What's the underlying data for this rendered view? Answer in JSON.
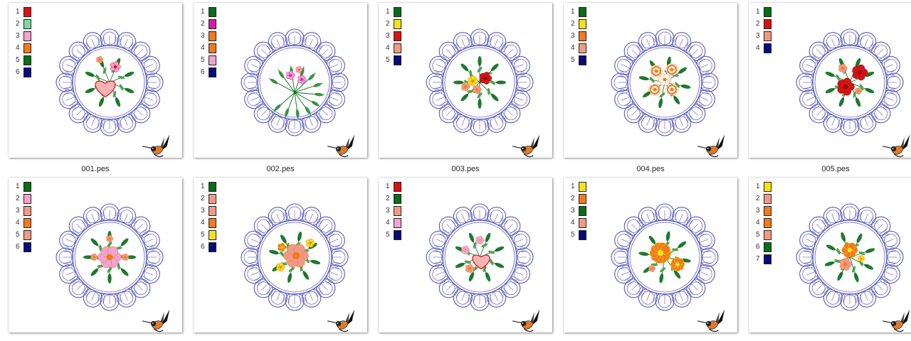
{
  "colors": {
    "green": "#0a6b1a",
    "light_green": "#7fd6a0",
    "pink": "#f2a3cf",
    "orange": "#f07a1e",
    "navy": "#0a0a7a",
    "magenta": "#d21ca8",
    "yellow": "#f4e21a",
    "red": "#d41414",
    "salmon": "#ef9a86",
    "blue_stitch": "#5a5ab8"
  },
  "files": [
    {
      "name": "001.pes",
      "threads": [
        {
          "num": "1",
          "color": "#d41414"
        },
        {
          "num": "2",
          "color": "#7fd6a0"
        },
        {
          "num": "3",
          "color": "#f2a3cf"
        },
        {
          "num": "4",
          "color": "#f07a1e"
        },
        {
          "num": "5",
          "color": "#0a6b1a"
        },
        {
          "num": "6",
          "color": "#0a0a7a"
        }
      ]
    },
    {
      "name": "002.pes",
      "threads": [
        {
          "num": "1",
          "color": "#0a6b1a"
        },
        {
          "num": "2",
          "color": "#d21ca8"
        },
        {
          "num": "3",
          "color": "#f07a1e"
        },
        {
          "num": "4",
          "color": "#f07a1e"
        },
        {
          "num": "5",
          "color": "#f2a3cf"
        },
        {
          "num": "6",
          "color": "#0a0a7a"
        }
      ]
    },
    {
      "name": "003.pes",
      "threads": [
        {
          "num": "1",
          "color": "#0a6b1a"
        },
        {
          "num": "2",
          "color": "#f4e21a"
        },
        {
          "num": "3",
          "color": "#d41414"
        },
        {
          "num": "4",
          "color": "#ef9a86"
        },
        {
          "num": "5",
          "color": "#0a0a7a"
        }
      ]
    },
    {
      "name": "004.pes",
      "threads": [
        {
          "num": "1",
          "color": "#0a6b1a"
        },
        {
          "num": "2",
          "color": "#f4e21a"
        },
        {
          "num": "3",
          "color": "#f07a1e"
        },
        {
          "num": "4",
          "color": "#ef9a86"
        },
        {
          "num": "5",
          "color": "#0a0a7a"
        }
      ]
    },
    {
      "name": "005.pes",
      "threads": [
        {
          "num": "1",
          "color": "#0a6b1a"
        },
        {
          "num": "2",
          "color": "#d41414"
        },
        {
          "num": "3",
          "color": "#ef9a86"
        },
        {
          "num": "4",
          "color": "#0a0a7a"
        }
      ]
    },
    {
      "name": "",
      "threads": [
        {
          "num": "1",
          "color": "#0a6b1a"
        },
        {
          "num": "2",
          "color": "#f2a3cf"
        },
        {
          "num": "3",
          "color": "#ef9a86"
        },
        {
          "num": "4",
          "color": "#f07a1e"
        },
        {
          "num": "5",
          "color": "#ef9a86"
        },
        {
          "num": "6",
          "color": "#0a0a7a"
        }
      ]
    },
    {
      "name": "",
      "threads": [
        {
          "num": "1",
          "color": "#0a6b1a"
        },
        {
          "num": "2",
          "color": "#ef9a86"
        },
        {
          "num": "3",
          "color": "#ef9a86"
        },
        {
          "num": "4",
          "color": "#f07a1e"
        },
        {
          "num": "5",
          "color": "#f4e21a"
        },
        {
          "num": "6",
          "color": "#0a0a7a"
        }
      ]
    },
    {
      "name": "",
      "threads": [
        {
          "num": "1",
          "color": "#d41414"
        },
        {
          "num": "2",
          "color": "#0a6b1a"
        },
        {
          "num": "3",
          "color": "#ef9a86"
        },
        {
          "num": "4",
          "color": "#f2a3cf"
        },
        {
          "num": "5",
          "color": "#0a0a7a"
        }
      ]
    },
    {
      "name": "",
      "threads": [
        {
          "num": "1",
          "color": "#f4e21a"
        },
        {
          "num": "2",
          "color": "#f07a1e"
        },
        {
          "num": "3",
          "color": "#0a6b1a"
        },
        {
          "num": "4",
          "color": "#ef9a86"
        },
        {
          "num": "5",
          "color": "#0a0a7a"
        }
      ]
    },
    {
      "name": "",
      "threads": [
        {
          "num": "1",
          "color": "#f4e21a"
        },
        {
          "num": "2",
          "color": "#ef9a86"
        },
        {
          "num": "3",
          "color": "#f07a1e"
        },
        {
          "num": "4",
          "color": "#f07a1e"
        },
        {
          "num": "5",
          "color": "#ef9a86"
        },
        {
          "num": "6",
          "color": "#0a6b1a"
        },
        {
          "num": "7",
          "color": "#0a0a7a"
        }
      ]
    }
  ]
}
